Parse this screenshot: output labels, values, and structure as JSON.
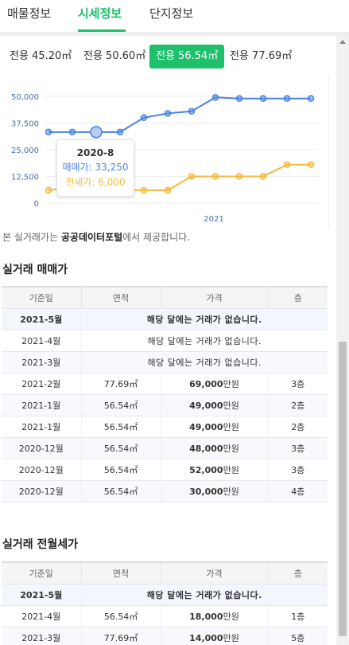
{
  "tabs": [
    {
      "label": "매물정보"
    },
    {
      "label": "시세정보"
    },
    {
      "label": "단지정보"
    }
  ],
  "areas": [
    {
      "label": "전용 45.20㎡"
    },
    {
      "label": "전용 50.60㎡"
    },
    {
      "label": "전용 56.54㎡"
    },
    {
      "label": "전용 77.69㎡"
    }
  ],
  "colors": {
    "accent": "#1ec06b",
    "sale_line": "#4a82e3",
    "jeonse_line": "#f5b93c"
  },
  "chart_data": {
    "type": "line",
    "y_ticks": [
      "50,000",
      "37,500",
      "25,000",
      "12,500",
      "0"
    ],
    "ylim": [
      0,
      50000
    ],
    "x_tick_label": "2021",
    "series": [
      {
        "name": "매매가",
        "values": [
          33250,
          33250,
          33250,
          33250,
          40000,
          42000,
          43000,
          49500,
          49000,
          49000,
          49000,
          49000
        ]
      },
      {
        "name": "전세가",
        "values": [
          6000,
          7500,
          null,
          6000,
          6000,
          6000,
          12500,
          12500,
          12500,
          12500,
          18000,
          18000
        ]
      }
    ],
    "tooltip": {
      "title": "2020-8",
      "sale": "매매가: 33,250",
      "jeonse": "전세가: 6,000"
    }
  },
  "source": {
    "prefix": "본 실거래가는 ",
    "name": "공공데이터포털",
    "suffix": "에서 제공합니다."
  },
  "sale_section": {
    "title": "실거래 매매가",
    "headers": [
      "기준일",
      "면적",
      "가격",
      "층"
    ],
    "rows": [
      {
        "date": "2021-5월",
        "note": "해당 달에는 거래가 없습니다."
      },
      {
        "date": "2021-4월",
        "note": "해당 달에는 거래가 없습니다."
      },
      {
        "date": "2021-3월",
        "note": "해당 달에는 거래가 없습니다."
      },
      {
        "date": "2021-2월",
        "area": "77.69㎡",
        "price": "69,000",
        "unit": "만원",
        "floor": "3층"
      },
      {
        "date": "2021-1월",
        "area": "56.54㎡",
        "price": "49,000",
        "unit": "만원",
        "floor": "2층"
      },
      {
        "date": "2021-1월",
        "area": "56.54㎡",
        "price": "49,000",
        "unit": "만원",
        "floor": "2층"
      },
      {
        "date": "2020-12월",
        "area": "56.54㎡",
        "price": "48,000",
        "unit": "만원",
        "floor": "3층"
      },
      {
        "date": "2020-12월",
        "area": "56.54㎡",
        "price": "52,000",
        "unit": "만원",
        "floor": "3층"
      },
      {
        "date": "2020-12월",
        "area": "56.54㎡",
        "price": "30,000",
        "unit": "만원",
        "floor": "4층"
      }
    ]
  },
  "rent_section": {
    "title": "실거래 전월세가",
    "headers": [
      "기준일",
      "면적",
      "가격",
      "층"
    ],
    "rows": [
      {
        "date": "2021-5월",
        "note": "해당 달에는 거래가 없습니다."
      },
      {
        "date": "2021-4월",
        "area": "56.54㎡",
        "price": "18,000",
        "unit": "만원",
        "floor": "1층"
      },
      {
        "date": "2021-3월",
        "area": "77.69㎡",
        "price": "14,000",
        "unit": "만원",
        "floor": "5층"
      }
    ]
  }
}
